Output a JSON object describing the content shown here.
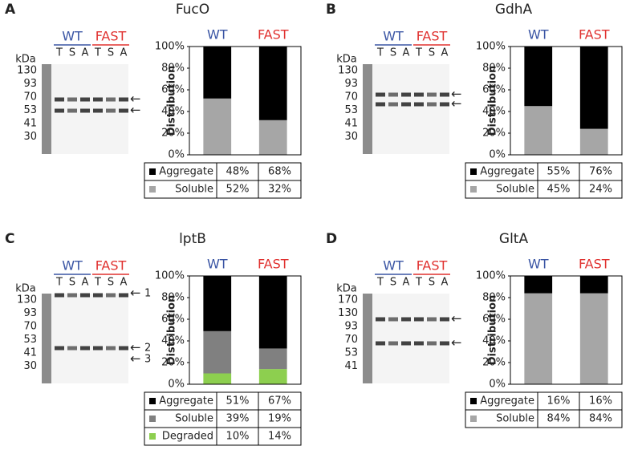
{
  "chart_data": [
    {
      "type": "stacked-bar",
      "panel": "A",
      "title": "FucO",
      "y_label": "Distribution",
      "categories": [
        "WT",
        "FAST"
      ],
      "category_colors": [
        "#3a55a4",
        "#e0312f"
      ],
      "series": [
        {
          "name": "Soluble",
          "color": "#a6a6a6",
          "values": [
            52,
            32
          ],
          "value_labels": [
            "52%",
            "32%"
          ]
        },
        {
          "name": "Aggregate",
          "color": "#000000",
          "values": [
            48,
            68
          ],
          "value_labels": [
            "48%",
            "68%"
          ]
        }
      ],
      "table_order": [
        1,
        0
      ],
      "ylim": [
        0,
        100
      ],
      "yticks": [
        {
          "value": 0,
          "label": "0%"
        },
        {
          "value": 20,
          "label": "20%"
        },
        {
          "value": 40,
          "label": "40%"
        },
        {
          "value": 60,
          "label": "60%"
        },
        {
          "value": 80,
          "label": "80%"
        },
        {
          "value": 100,
          "label": "100%"
        }
      ],
      "blot": {
        "unit": "kDa",
        "markers": [
          "130",
          "93",
          "70",
          "53",
          "41",
          "30"
        ],
        "lanes": [
          "T",
          "S",
          "A",
          "T",
          "S",
          "A"
        ],
        "arrow_labels": []
      }
    },
    {
      "type": "stacked-bar",
      "panel": "B",
      "title": "GdhA",
      "y_label": "Distribution",
      "categories": [
        "WT",
        "FAST"
      ],
      "category_colors": [
        "#3a55a4",
        "#e0312f"
      ],
      "series": [
        {
          "name": "Soluble",
          "color": "#a6a6a6",
          "values": [
            45,
            24
          ],
          "value_labels": [
            "45%",
            "24%"
          ]
        },
        {
          "name": "Aggregate",
          "color": "#000000",
          "values": [
            55,
            76
          ],
          "value_labels": [
            "55%",
            "76%"
          ]
        }
      ],
      "table_order": [
        1,
        0
      ],
      "ylim": [
        0,
        100
      ],
      "yticks": [
        {
          "value": 0,
          "label": "0%"
        },
        {
          "value": 20,
          "label": "20%"
        },
        {
          "value": 40,
          "label": "40%"
        },
        {
          "value": 60,
          "label": "60%"
        },
        {
          "value": 80,
          "label": "80%"
        },
        {
          "value": 100,
          "label": "100%"
        }
      ],
      "blot": {
        "unit": "kDa",
        "markers": [
          "130",
          "93",
          "70",
          "53",
          "41",
          "30"
        ],
        "lanes": [
          "T",
          "S",
          "A",
          "T",
          "S",
          "A"
        ],
        "arrow_labels": []
      }
    },
    {
      "type": "stacked-bar",
      "panel": "C",
      "title": "lptB",
      "y_label": "Distribution",
      "categories": [
        "WT",
        "FAST"
      ],
      "category_colors": [
        "#3a55a4",
        "#e0312f"
      ],
      "series": [
        {
          "name": "Degraded",
          "color": "#8dcf4f",
          "values": [
            10,
            14
          ],
          "value_labels": [
            "10%",
            "14%"
          ]
        },
        {
          "name": "Soluble",
          "color": "#808080",
          "values": [
            39,
            19
          ],
          "value_labels": [
            "39%",
            "19%"
          ]
        },
        {
          "name": "Aggregate",
          "color": "#000000",
          "values": [
            51,
            67
          ],
          "value_labels": [
            "51%",
            "67%"
          ]
        }
      ],
      "table_order": [
        2,
        1,
        0
      ],
      "ylim": [
        0,
        100
      ],
      "yticks": [
        {
          "value": 0,
          "label": "0%"
        },
        {
          "value": 20,
          "label": "20%"
        },
        {
          "value": 40,
          "label": "40%"
        },
        {
          "value": 60,
          "label": "60%"
        },
        {
          "value": 80,
          "label": "80%"
        },
        {
          "value": 100,
          "label": "100%"
        }
      ],
      "blot": {
        "unit": "kDa",
        "markers": [
          "130",
          "93",
          "70",
          "53",
          "41",
          "30"
        ],
        "lanes": [
          "T",
          "S",
          "A",
          "T",
          "S",
          "A"
        ],
        "arrow_labels": [
          "1",
          "2",
          "3"
        ]
      }
    },
    {
      "type": "stacked-bar",
      "panel": "D",
      "title": "GltA",
      "y_label": "Distribution",
      "categories": [
        "WT",
        "FAST"
      ],
      "category_colors": [
        "#3a55a4",
        "#e0312f"
      ],
      "series": [
        {
          "name": "Soluble",
          "color": "#a6a6a6",
          "values": [
            84,
            84
          ],
          "value_labels": [
            "84%",
            "84%"
          ]
        },
        {
          "name": "Aggregate",
          "color": "#000000",
          "values": [
            16,
            16
          ],
          "value_labels": [
            "16%",
            "16%"
          ]
        }
      ],
      "table_order": [
        1,
        0
      ],
      "ylim": [
        0,
        100
      ],
      "yticks": [
        {
          "value": 0,
          "label": "0%"
        },
        {
          "value": 20,
          "label": "20%"
        },
        {
          "value": 40,
          "label": "40%"
        },
        {
          "value": 60,
          "label": "60%"
        },
        {
          "value": 80,
          "label": "80%"
        },
        {
          "value": 100,
          "label": "100%"
        }
      ],
      "blot": {
        "unit": "kDa",
        "markers": [
          "170",
          "130",
          "93",
          "70",
          "53",
          "41"
        ],
        "lanes": [
          "T",
          "S",
          "A",
          "T",
          "S",
          "A"
        ],
        "arrow_labels": []
      }
    }
  ]
}
